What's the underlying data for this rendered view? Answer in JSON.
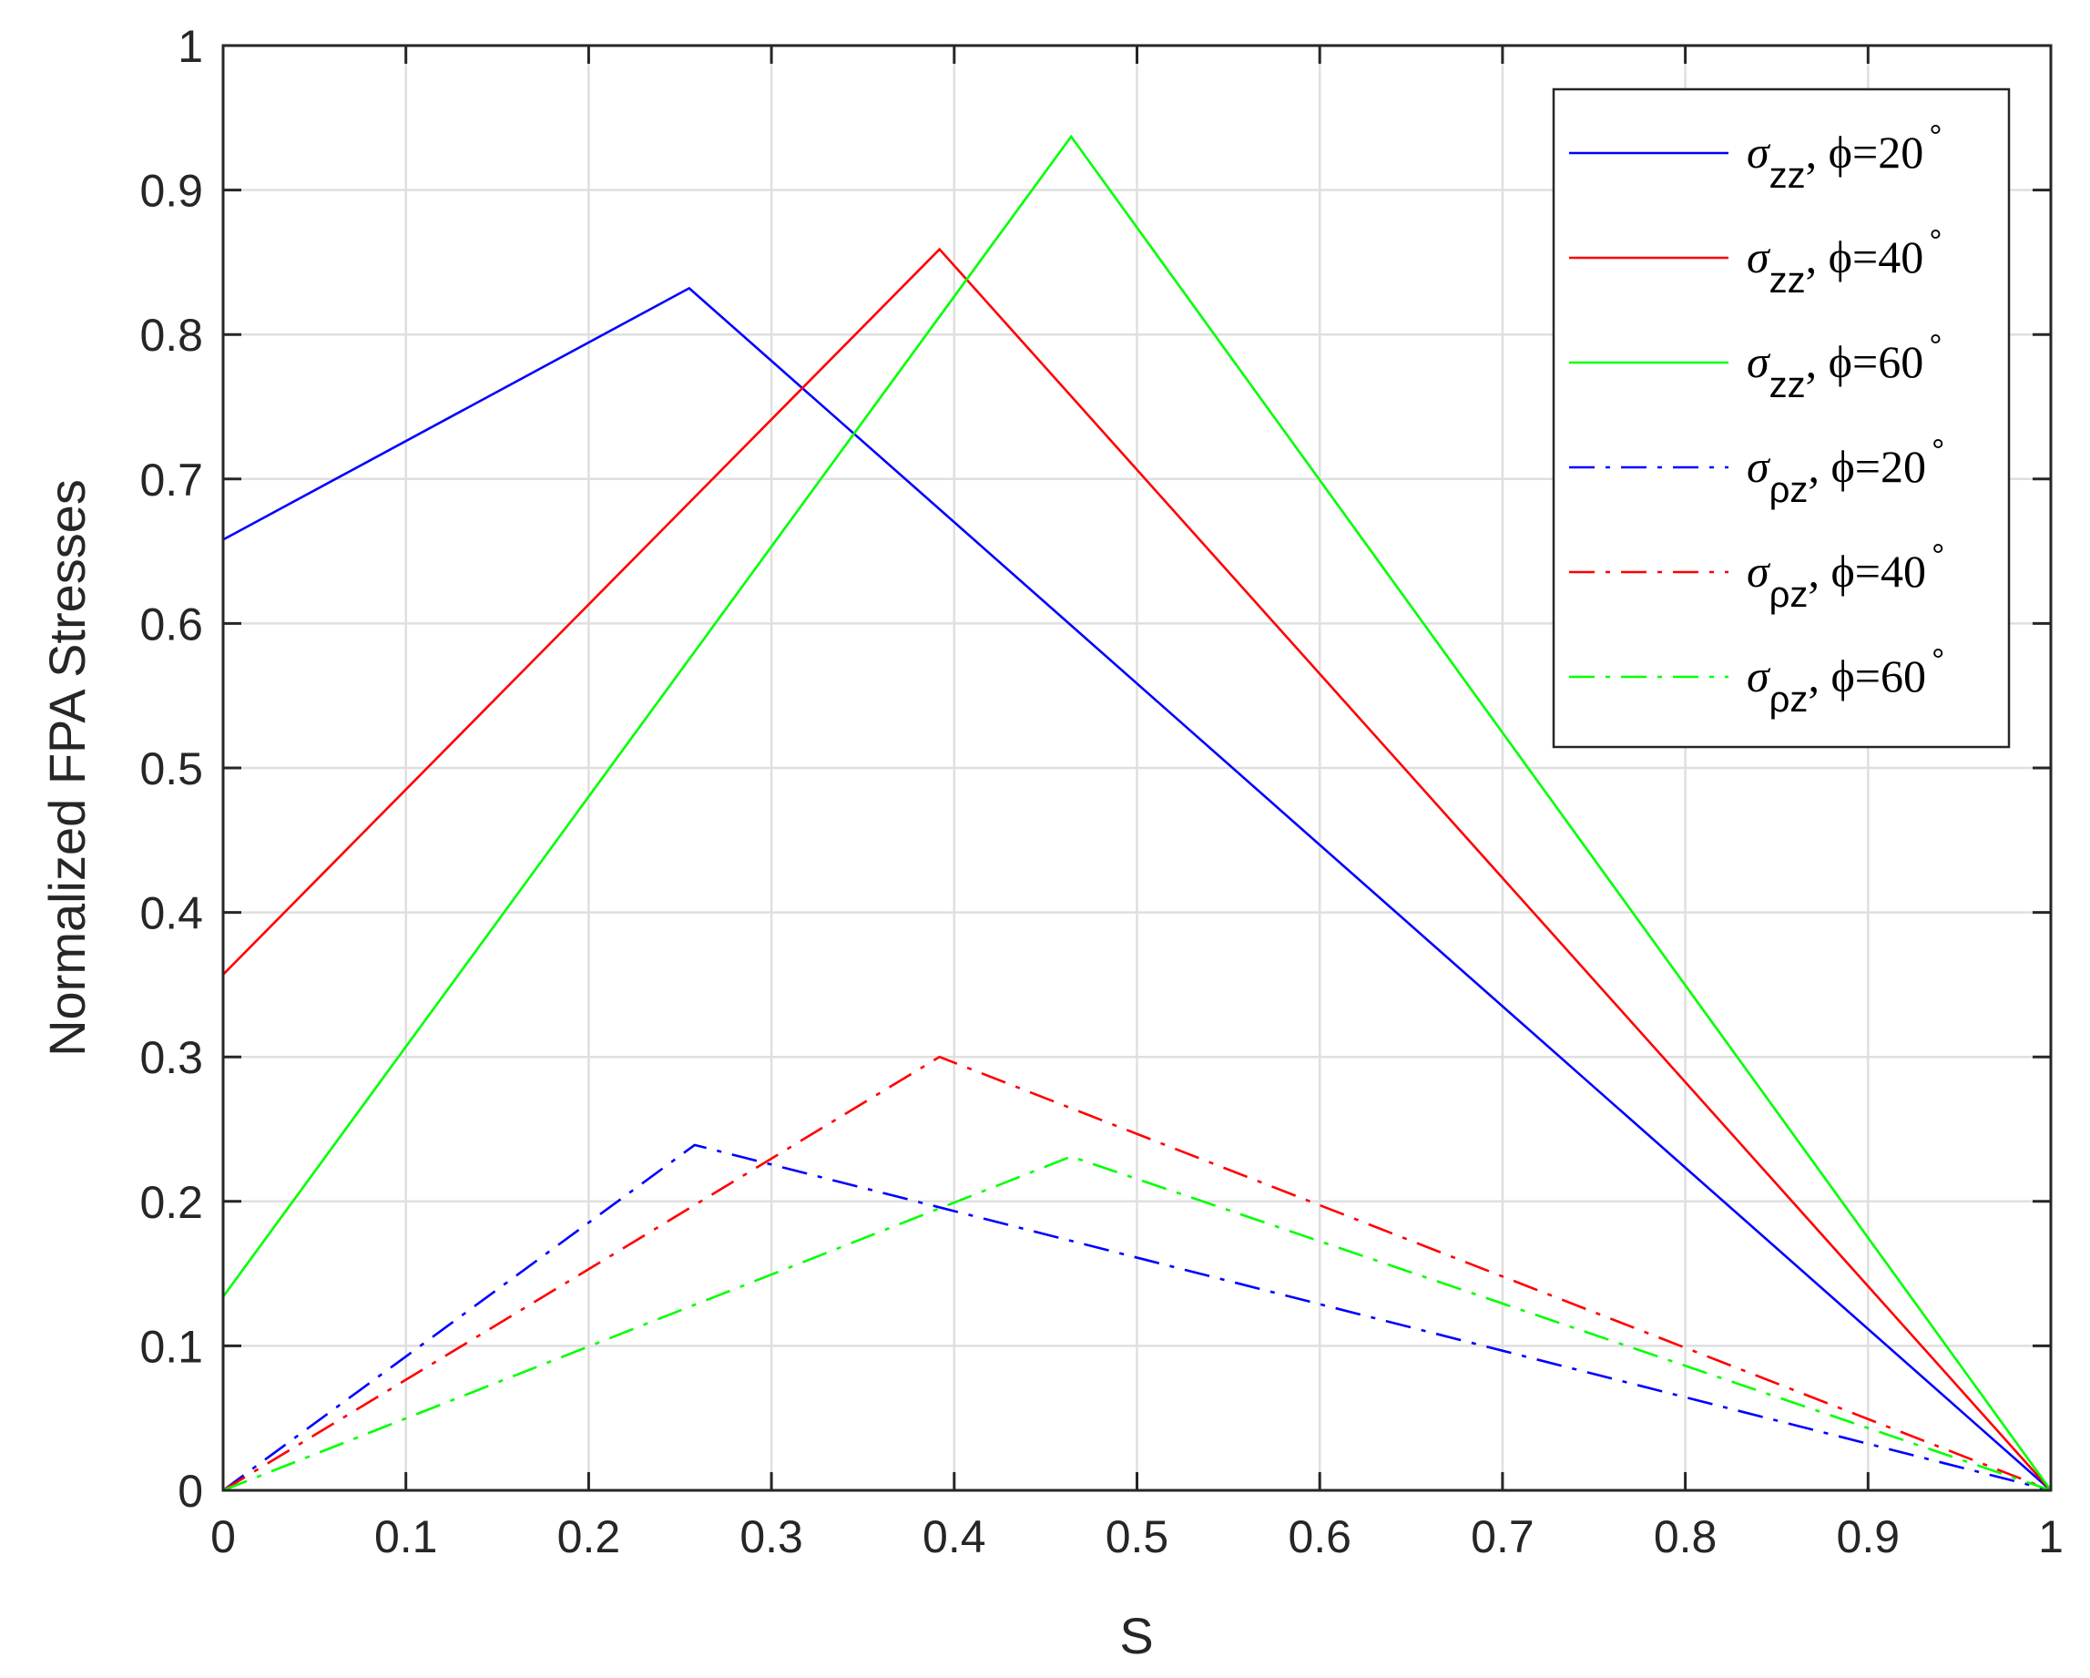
{
  "chart_data": {
    "type": "line",
    "title": "",
    "xlabel": "S",
    "ylabel": "Normalized FPA Stresses",
    "xlim": [
      0,
      1
    ],
    "ylim": [
      0,
      1
    ],
    "xticks": [
      0,
      0.1,
      0.2,
      0.3,
      0.4,
      0.5,
      0.6,
      0.7,
      0.8,
      0.9,
      1
    ],
    "yticks": [
      0,
      0.1,
      0.2,
      0.3,
      0.4,
      0.5,
      0.6,
      0.7,
      0.8,
      0.9,
      1
    ],
    "xtick_labels": [
      "0",
      "0.1",
      "0.2",
      "0.3",
      "0.4",
      "0.5",
      "0.6",
      "0.7",
      "0.8",
      "0.9",
      "1"
    ],
    "ytick_labels": [
      "0",
      "0.1",
      "0.2",
      "0.3",
      "0.4",
      "0.5",
      "0.6",
      "0.7",
      "0.8",
      "0.9",
      "1"
    ],
    "grid": true,
    "legend_position": "top-right",
    "series": [
      {
        "name": "σzz, ϕ=20°",
        "symbol": "σ",
        "subscript": "zz",
        "phi_text": ", ϕ=20",
        "degree": "°",
        "color": "#0000ff",
        "style": "solid",
        "x": [
          0,
          0.255,
          1
        ],
        "y": [
          0.658,
          0.832,
          0
        ]
      },
      {
        "name": "σzz, ϕ=40°",
        "symbol": "σ",
        "subscript": "zz",
        "phi_text": ", ϕ=40",
        "degree": "°",
        "color": "#ff0000",
        "style": "solid",
        "x": [
          0,
          0.392,
          1
        ],
        "y": [
          0.357,
          0.859,
          0
        ]
      },
      {
        "name": "σzz, ϕ=60°",
        "symbol": "σ",
        "subscript": "zz",
        "phi_text": ", ϕ=60",
        "degree": "°",
        "color": "#00ff00",
        "style": "solid",
        "x": [
          0,
          0.464,
          1
        ],
        "y": [
          0.134,
          0.937,
          0
        ]
      },
      {
        "name": "σρz, ϕ=20°",
        "symbol": "σ",
        "subscript": "ρz",
        "phi_text": ", ϕ=20",
        "degree": "°",
        "color": "#0000ff",
        "style": "dashdot",
        "x": [
          0,
          0.258,
          1
        ],
        "y": [
          0,
          0.239,
          0
        ]
      },
      {
        "name": "σρz, ϕ=40°",
        "symbol": "σ",
        "subscript": "ρz",
        "phi_text": ", ϕ=40",
        "degree": "°",
        "color": "#ff0000",
        "style": "dashdot",
        "x": [
          0,
          0.392,
          1
        ],
        "y": [
          0,
          0.3,
          0
        ]
      },
      {
        "name": "σρz, ϕ=60°",
        "symbol": "σ",
        "subscript": "ρz",
        "phi_text": ", ϕ=60",
        "degree": "°",
        "color": "#00ff00",
        "style": "dashdot",
        "x": [
          0,
          0.464,
          1
        ],
        "y": [
          0,
          0.231,
          0
        ]
      }
    ],
    "baseline": {
      "color": "#00ff00",
      "x": [
        0,
        1
      ],
      "y": [
        0,
        0
      ]
    }
  }
}
